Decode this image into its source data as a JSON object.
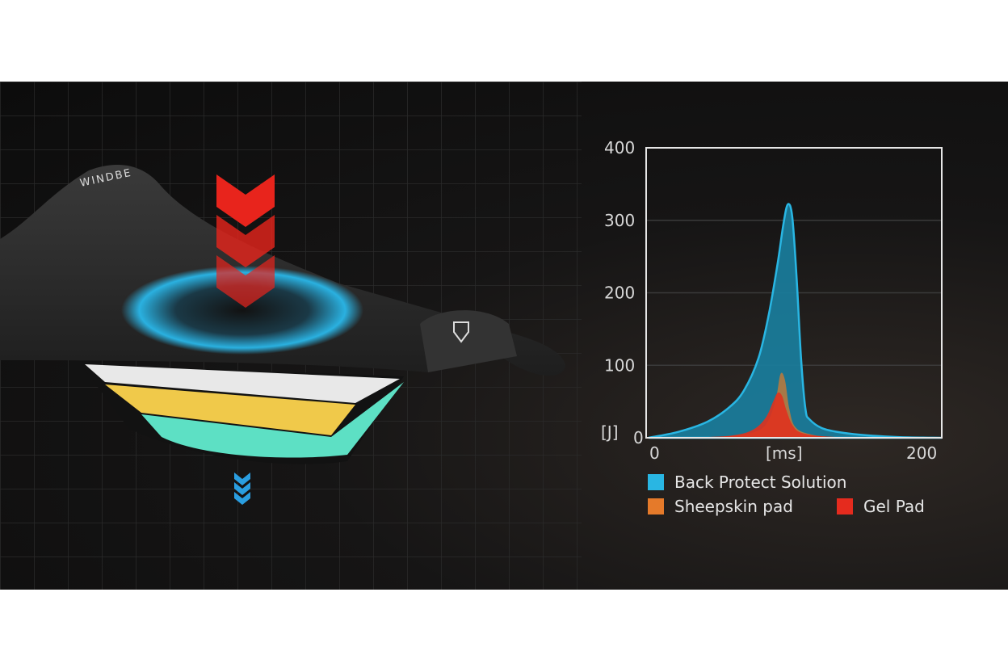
{
  "illustration": {
    "brand_text": "WINDBE",
    "force_arrow_color": "#e8241c",
    "impact_glow_color": "#2ab8ea",
    "layer_colors": [
      "#e8e8e8",
      "#f0c94a",
      "#5de0c4"
    ],
    "exit_arrow_color": "#2a9ee0"
  },
  "chart_data": {
    "type": "area",
    "xlabel": "[ms]",
    "ylabel": "[J]",
    "xlim": [
      0,
      200
    ],
    "ylim": [
      0,
      400
    ],
    "x_ticks": [
      "0",
      "200"
    ],
    "y_ticks": [
      "0",
      "100",
      "200",
      "300",
      "400"
    ],
    "grid": true,
    "legend_position": "bottom",
    "series": [
      {
        "name": "Back Protect Solution",
        "color": "#29b6e3",
        "x": [
          0,
          20,
          40,
          55,
          65,
          75,
          82,
          88,
          92,
          95,
          98,
          101,
          104,
          107,
          110,
          120,
          140,
          170,
          200
        ],
        "y": [
          0,
          8,
          22,
          42,
          65,
          110,
          170,
          240,
          295,
          322,
          305,
          220,
          110,
          40,
          25,
          12,
          5,
          1,
          0
        ]
      },
      {
        "name": "Sheepskin pad",
        "color": "#e57a2a",
        "x": [
          0,
          40,
          60,
          75,
          82,
          87,
          90,
          93,
          96,
          100,
          110,
          130,
          200
        ],
        "y": [
          0,
          1,
          3,
          10,
          25,
          55,
          88,
          80,
          40,
          15,
          5,
          1,
          0
        ]
      },
      {
        "name": "Gel Pad",
        "color": "#e52b1e",
        "x": [
          0,
          40,
          60,
          72,
          80,
          85,
          88,
          91,
          94,
          98,
          104,
          120,
          150,
          200
        ],
        "y": [
          0,
          1,
          4,
          12,
          28,
          50,
          62,
          58,
          38,
          18,
          7,
          2,
          0,
          0
        ]
      }
    ]
  }
}
